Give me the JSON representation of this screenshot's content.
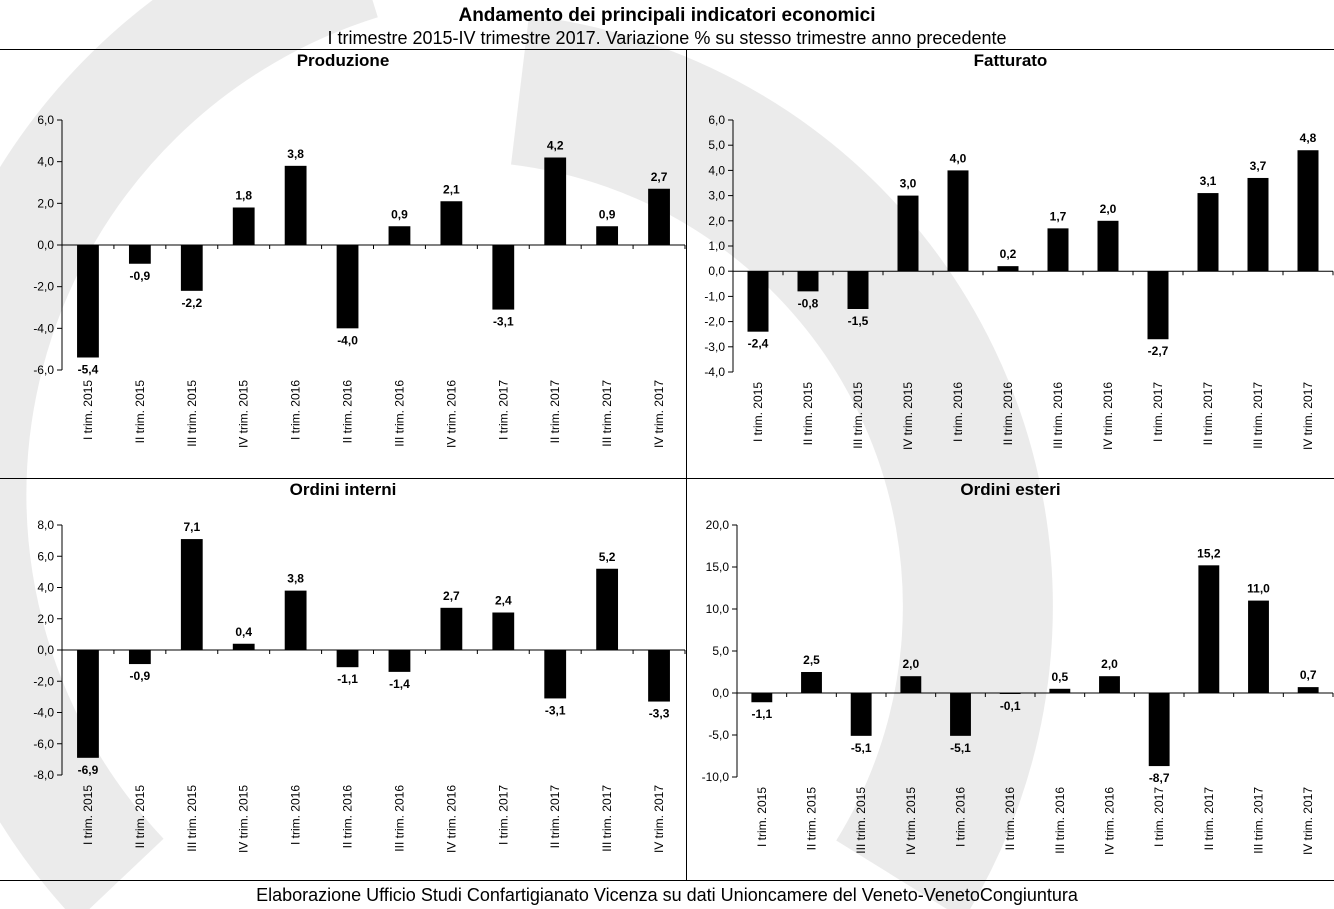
{
  "title": "Andamento dei principali indicatori economici",
  "subtitle": "I trimestre 2015-IV trimestre 2017. Variazione % su stesso trimestre anno precedente",
  "footer": "Elaborazione Ufficio Studi Confartigianato Vicenza su dati Unioncamere del Veneto-VenetoCongiuntura",
  "colors": {
    "bar": "#000000",
    "background_arc": "#e6e6e6",
    "axis": "#000000"
  },
  "chart_data": [
    {
      "type": "bar",
      "title": "Produzione",
      "categories": [
        "I trim. 2015",
        "II trim. 2015",
        "III trim. 2015",
        "IV trim. 2015",
        "I trim. 2016",
        "II trim. 2016",
        "III trim. 2016",
        "IV trim. 2016",
        "I trim. 2017",
        "II trim. 2017",
        "III trim. 2017",
        "IV trim. 2017"
      ],
      "values": [
        -5.4,
        -0.9,
        -2.2,
        1.8,
        3.8,
        -4.0,
        0.9,
        2.1,
        -3.1,
        4.2,
        0.9,
        2.7
      ],
      "value_labels": [
        "-5,4",
        "-0,9",
        "-2,2",
        "1,8",
        "3,8",
        "-4,0",
        "0,9",
        "2,1",
        "-3,1",
        "4,2",
        "0,9",
        "2,7"
      ],
      "ylim": [
        -6,
        6
      ],
      "yticks": [
        6,
        4,
        2,
        0,
        -2,
        -4,
        -6
      ],
      "ytick_labels": [
        "6,0",
        "4,0",
        "2,0",
        "0,0",
        "-2,0",
        "-4,0",
        "-6,0"
      ],
      "grid": false
    },
    {
      "type": "bar",
      "title": "Fatturato",
      "categories": [
        "I trim. 2015",
        "II trim. 2015",
        "III trim. 2015",
        "IV trim. 2015",
        "I trim. 2016",
        "II trim. 2016",
        "III trim. 2016",
        "IV trim. 2016",
        "I trim. 2017",
        "II trim. 2017",
        "III trim. 2017",
        "IV trim. 2017"
      ],
      "values": [
        -2.4,
        -0.8,
        -1.5,
        3.0,
        4.0,
        0.2,
        1.7,
        2.0,
        -2.7,
        3.1,
        3.7,
        4.8
      ],
      "value_labels": [
        "-2,4",
        "-0,8",
        "-1,5",
        "3,0",
        "4,0",
        "0,2",
        "1,7",
        "2,0",
        "-2,7",
        "3,1",
        "3,7",
        "4,8"
      ],
      "ylim": [
        -4,
        6
      ],
      "yticks": [
        6,
        5,
        4,
        3,
        2,
        1,
        0,
        -1,
        -2,
        -3,
        -4
      ],
      "ytick_labels": [
        "6,0",
        "5,0",
        "4,0",
        "3,0",
        "2,0",
        "1,0",
        "0,0",
        "-1,0",
        "-2,0",
        "-3,0",
        "-4,0"
      ],
      "grid": false
    },
    {
      "type": "bar",
      "title": "Ordini interni",
      "categories": [
        "I trim. 2015",
        "II trim. 2015",
        "III trim. 2015",
        "IV trim. 2015",
        "I trim. 2016",
        "II trim. 2016",
        "III trim. 2016",
        "IV trim. 2016",
        "I trim. 2017",
        "II trim. 2017",
        "III trim. 2017",
        "IV trim. 2017"
      ],
      "values": [
        -6.9,
        -0.9,
        7.1,
        0.4,
        3.8,
        -1.1,
        -1.4,
        2.7,
        2.4,
        -3.1,
        5.2,
        -3.3
      ],
      "value_labels": [
        "-6,9",
        "-0,9",
        "7,1",
        "0,4",
        "3,8",
        "-1,1",
        "-1,4",
        "2,7",
        "2,4",
        "-3,1",
        "5,2",
        "-3,3"
      ],
      "ylim": [
        -8,
        8
      ],
      "yticks": [
        8,
        6,
        4,
        2,
        0,
        -2,
        -4,
        -6,
        -8
      ],
      "ytick_labels": [
        "8,0",
        "6,0",
        "4,0",
        "2,0",
        "0,0",
        "-2,0",
        "-4,0",
        "-6,0",
        "-8,0"
      ],
      "grid": false
    },
    {
      "type": "bar",
      "title": "Ordini esteri",
      "categories": [
        "I trim. 2015",
        "II trim. 2015",
        "III trim. 2015",
        "IV trim. 2015",
        "I trim. 2016",
        "II trim. 2016",
        "III trim. 2016",
        "IV trim. 2016",
        "I trim. 2017",
        "II trim. 2017",
        "III trim. 2017",
        "IV trim. 2017"
      ],
      "values": [
        -1.1,
        2.5,
        -5.1,
        2.0,
        -5.1,
        -0.1,
        0.5,
        2.0,
        -8.7,
        15.2,
        11.0,
        0.7
      ],
      "value_labels": [
        "-1,1",
        "2,5",
        "-5,1",
        "2,0",
        "-5,1",
        "-0,1",
        "0,5",
        "2,0",
        "-8,7",
        "15,2",
        "11,0",
        "0,7"
      ],
      "ylim": [
        -10,
        20
      ],
      "yticks": [
        20,
        15,
        10,
        5,
        0,
        -5,
        -10
      ],
      "ytick_labels": [
        "20,0",
        "15,0",
        "10,0",
        "5,0",
        "0,0",
        "-5,0",
        "-10,0"
      ],
      "grid": false
    }
  ]
}
